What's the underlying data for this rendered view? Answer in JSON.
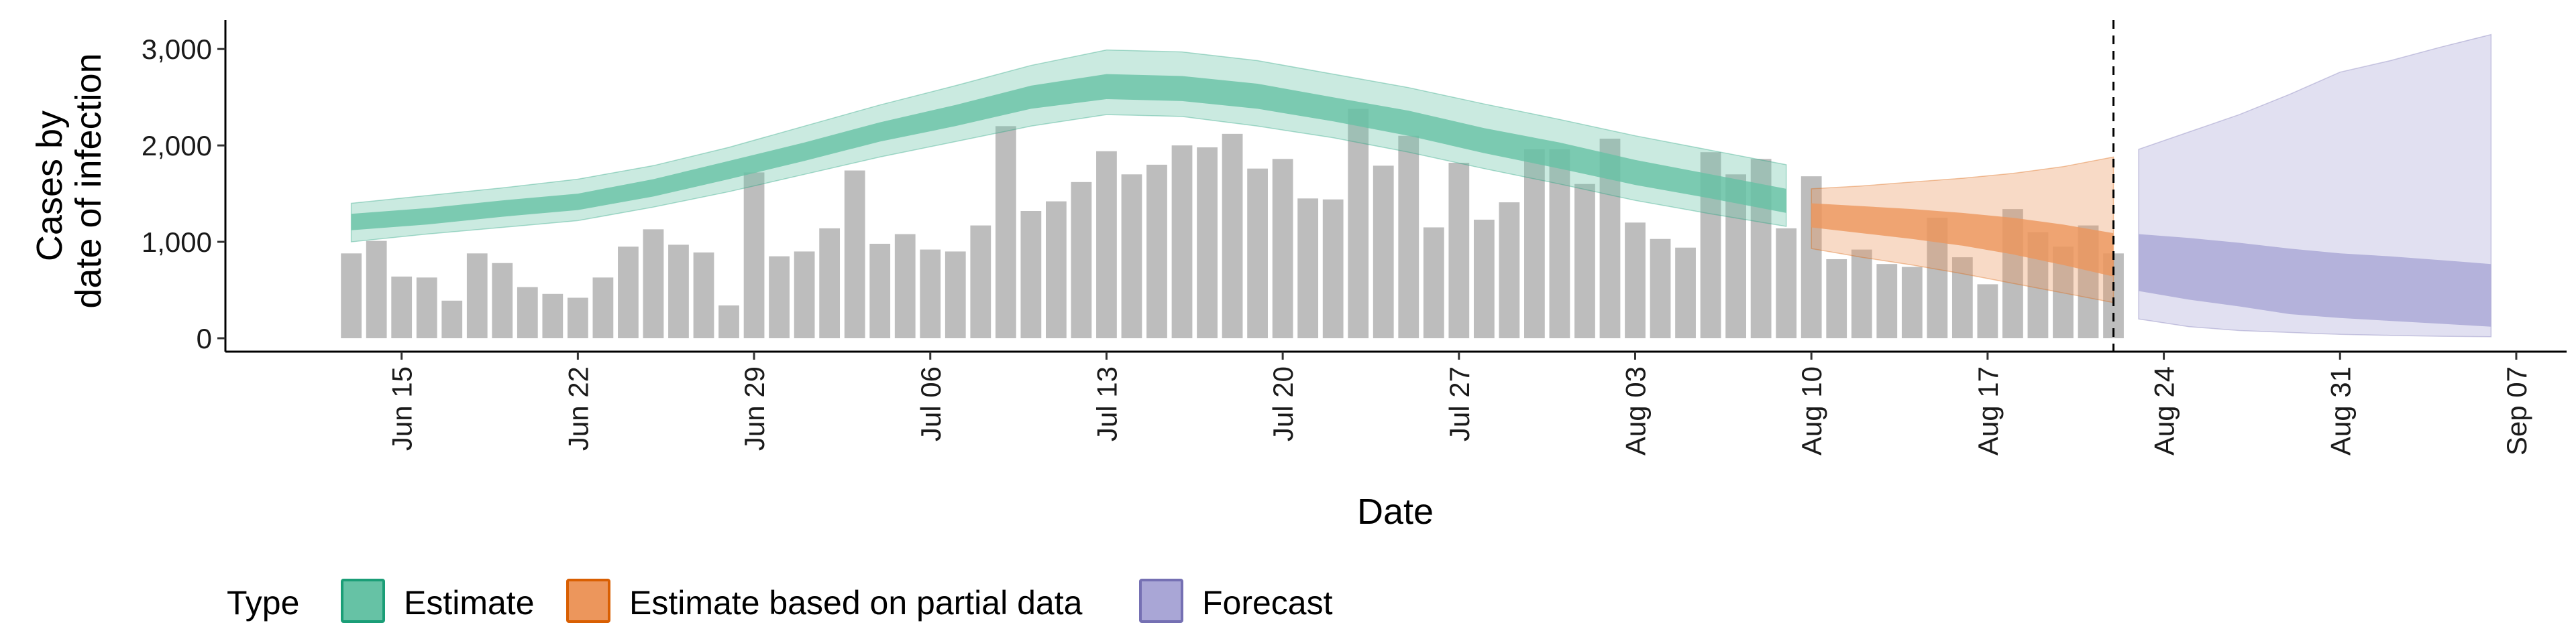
{
  "chart_data": {
    "type": "bar",
    "ylabel": [
      "Cases by",
      "date of infection"
    ],
    "xlabel": "Date",
    "ylim": [
      0,
      3300
    ],
    "y_ticks": [
      0,
      1000,
      2000,
      3000
    ],
    "y_tick_labels": [
      "0",
      "1,000",
      "2,000",
      "3,000"
    ],
    "x_ticks": [
      "2020-06-15",
      "2020-06-22",
      "2020-06-29",
      "2020-07-06",
      "2020-07-13",
      "2020-07-20",
      "2020-07-27",
      "2020-08-03",
      "2020-08-10",
      "2020-08-17",
      "2020-08-24",
      "2020-08-31",
      "2020-09-07"
    ],
    "x_tick_labels": [
      "Jun 15",
      "Jun 22",
      "Jun 29",
      "Jul 06",
      "Jul 13",
      "Jul 20",
      "Jul 27",
      "Aug 03",
      "Aug 10",
      "Aug 17",
      "Aug 24",
      "Aug 31",
      "Sep 07"
    ],
    "xlim": [
      "2020-06-08",
      "2020-09-09"
    ],
    "reference_line_date": "2020-08-22",
    "grid": false,
    "legend": {
      "title": "Type",
      "position": "bottom",
      "entries": [
        {
          "label": "Estimate",
          "fill": "#66c2a5",
          "stroke": "#1b9e77"
        },
        {
          "label": "Estimate based on partial data",
          "fill": "#ec965c",
          "stroke": "#d95f02"
        },
        {
          "label": "Forecast",
          "fill": "#a9a6d6",
          "stroke": "#7570b3"
        }
      ]
    },
    "bars": {
      "color": "#bdbdbd",
      "dates": [
        "2020-06-13",
        "2020-06-14",
        "2020-06-15",
        "2020-06-16",
        "2020-06-17",
        "2020-06-18",
        "2020-06-19",
        "2020-06-20",
        "2020-06-21",
        "2020-06-22",
        "2020-06-23",
        "2020-06-24",
        "2020-06-25",
        "2020-06-26",
        "2020-06-27",
        "2020-06-28",
        "2020-06-29",
        "2020-06-30",
        "2020-07-01",
        "2020-07-02",
        "2020-07-03",
        "2020-07-04",
        "2020-07-05",
        "2020-07-06",
        "2020-07-07",
        "2020-07-08",
        "2020-07-09",
        "2020-07-10",
        "2020-07-11",
        "2020-07-12",
        "2020-07-13",
        "2020-07-14",
        "2020-07-15",
        "2020-07-16",
        "2020-07-17",
        "2020-07-18",
        "2020-07-19",
        "2020-07-20",
        "2020-07-21",
        "2020-07-22",
        "2020-07-23",
        "2020-07-24",
        "2020-07-25",
        "2020-07-26",
        "2020-07-27",
        "2020-07-28",
        "2020-07-29",
        "2020-07-30",
        "2020-07-31",
        "2020-08-01",
        "2020-08-02",
        "2020-08-03",
        "2020-08-04",
        "2020-08-05",
        "2020-08-06",
        "2020-08-07",
        "2020-08-08",
        "2020-08-09",
        "2020-08-10",
        "2020-08-11",
        "2020-08-12",
        "2020-08-13",
        "2020-08-14",
        "2020-08-15",
        "2020-08-16",
        "2020-08-17",
        "2020-08-18",
        "2020-08-19",
        "2020-08-20",
        "2020-08-21",
        "2020-08-22"
      ],
      "values": [
        880,
        1010,
        640,
        630,
        390,
        880,
        780,
        530,
        460,
        420,
        630,
        950,
        1130,
        970,
        890,
        340,
        1720,
        850,
        900,
        1140,
        1740,
        980,
        1080,
        920,
        900,
        1170,
        2200,
        1320,
        1420,
        1620,
        1940,
        1700,
        1800,
        2000,
        1980,
        2120,
        1760,
        1860,
        1450,
        1440,
        2380,
        1790,
        2100,
        1150,
        1820,
        1230,
        1410,
        1960,
        1960,
        1600,
        2070,
        1200,
        1030,
        940,
        1930,
        1700,
        1860,
        1140,
        1680,
        820,
        920,
        770,
        740,
        1250,
        840,
        560,
        1340,
        1100,
        950,
        1170,
        880
      ]
    },
    "series": [
      {
        "name": "Estimate",
        "dates": [
          "2020-06-13",
          "2020-06-16",
          "2020-06-19",
          "2020-06-22",
          "2020-06-25",
          "2020-06-28",
          "2020-07-01",
          "2020-07-04",
          "2020-07-07",
          "2020-07-10",
          "2020-07-13",
          "2020-07-16",
          "2020-07-19",
          "2020-07-22",
          "2020-07-25",
          "2020-07-28",
          "2020-07-31",
          "2020-08-03",
          "2020-08-06",
          "2020-08-09"
        ],
        "median": [
          1200,
          1260,
          1340,
          1410,
          1560,
          1740,
          1930,
          2140,
          2310,
          2500,
          2600,
          2580,
          2500,
          2370,
          2220,
          2040,
          1880,
          1700,
          1560,
          1420
        ],
        "inner": [
          [
            1120,
            1290
          ],
          [
            1180,
            1350
          ],
          [
            1260,
            1430
          ],
          [
            1330,
            1500
          ],
          [
            1470,
            1650
          ],
          [
            1650,
            1840
          ],
          [
            1840,
            2030
          ],
          [
            2040,
            2240
          ],
          [
            2200,
            2420
          ],
          [
            2380,
            2620
          ],
          [
            2480,
            2740
          ],
          [
            2460,
            2720
          ],
          [
            2380,
            2640
          ],
          [
            2250,
            2500
          ],
          [
            2100,
            2360
          ],
          [
            1920,
            2180
          ],
          [
            1760,
            2030
          ],
          [
            1590,
            1850
          ],
          [
            1450,
            1700
          ],
          [
            1300,
            1550
          ]
        ],
        "outer": [
          [
            1000,
            1400
          ],
          [
            1080,
            1480
          ],
          [
            1150,
            1560
          ],
          [
            1220,
            1650
          ],
          [
            1360,
            1790
          ],
          [
            1520,
            1980
          ],
          [
            1700,
            2200
          ],
          [
            1880,
            2420
          ],
          [
            2040,
            2620
          ],
          [
            2200,
            2830
          ],
          [
            2320,
            2990
          ],
          [
            2300,
            2970
          ],
          [
            2200,
            2880
          ],
          [
            2080,
            2740
          ],
          [
            1930,
            2600
          ],
          [
            1760,
            2430
          ],
          [
            1600,
            2270
          ],
          [
            1430,
            2100
          ],
          [
            1290,
            1950
          ],
          [
            1160,
            1800
          ]
        ]
      },
      {
        "name": "Estimate based on partial data",
        "dates": [
          "2020-08-10",
          "2020-08-12",
          "2020-08-14",
          "2020-08-16",
          "2020-08-18",
          "2020-08-20",
          "2020-08-22"
        ],
        "median": [
          1280,
          1230,
          1180,
          1130,
          1060,
          970,
          860
        ],
        "inner": [
          [
            1150,
            1400
          ],
          [
            1090,
            1370
          ],
          [
            1030,
            1340
          ],
          [
            960,
            1300
          ],
          [
            870,
            1250
          ],
          [
            760,
            1180
          ],
          [
            640,
            1090
          ]
        ],
        "outer": [
          [
            930,
            1550
          ],
          [
            840,
            1580
          ],
          [
            760,
            1620
          ],
          [
            670,
            1660
          ],
          [
            570,
            1710
          ],
          [
            470,
            1780
          ],
          [
            370,
            1880
          ]
        ]
      },
      {
        "name": "Forecast",
        "dates": [
          "2020-08-23",
          "2020-08-25",
          "2020-08-27",
          "2020-08-29",
          "2020-08-31",
          "2020-09-02",
          "2020-09-04",
          "2020-09-06"
        ],
        "inner": [
          [
            490,
            1080
          ],
          [
            400,
            1040
          ],
          [
            330,
            990
          ],
          [
            250,
            930
          ],
          [
            210,
            880
          ],
          [
            180,
            850
          ],
          [
            150,
            810
          ],
          [
            120,
            770
          ]
        ],
        "outer": [
          [
            200,
            1960
          ],
          [
            120,
            2140
          ],
          [
            80,
            2320
          ],
          [
            60,
            2530
          ],
          [
            40,
            2760
          ],
          [
            30,
            2880
          ],
          [
            20,
            3020
          ],
          [
            15,
            3150
          ]
        ]
      }
    ]
  }
}
